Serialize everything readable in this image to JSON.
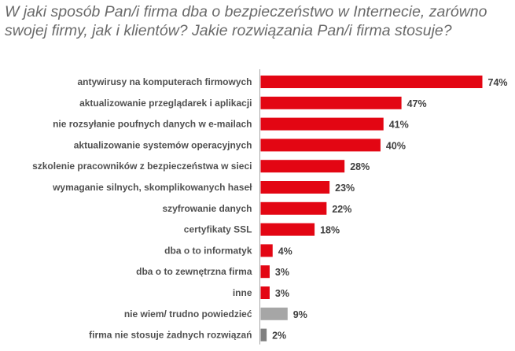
{
  "chart_data": {
    "type": "bar",
    "orientation": "horizontal",
    "title": "W jaki sposób Pan/i firma dba o bezpieczeństwo w Internecie, zarówno swojej firmy, jak i klientów? Jakie rozwiązania Pan/i firma stosuje?",
    "xlabel": "",
    "ylabel": "",
    "xlim": [
      0,
      74
    ],
    "grid": false,
    "legend": "none",
    "value_suffix": "%",
    "categories": [
      "antywirusy na komputerach firmowych",
      "aktualizowanie przeglądarek i aplikacji",
      "nie rozsyłanie poufnych danych w e-mailach",
      "aktualizowanie systemów operacyjnych",
      "szkolenie pracowników z bezpieczeństwa w sieci",
      "wymaganie silnych, skomplikowanych haseł",
      "szyfrowanie danych",
      "certyfikaty SSL",
      "dba o to informatyk",
      "dba o to zewnętrzna firma",
      "inne",
      "nie wiem/ trudno powiedzieć",
      "firma nie stosuje żadnych rozwiązań"
    ],
    "values": [
      74,
      47,
      41,
      40,
      28,
      23,
      22,
      18,
      4,
      3,
      3,
      9,
      2
    ],
    "bar_colors": [
      "#e30613",
      "#e30613",
      "#e30613",
      "#e30613",
      "#e30613",
      "#e30613",
      "#e30613",
      "#e30613",
      "#e30613",
      "#e30613",
      "#e30613",
      "#a6a6a6",
      "#7f7f7f"
    ],
    "axis_color": "#a6a6a6"
  }
}
